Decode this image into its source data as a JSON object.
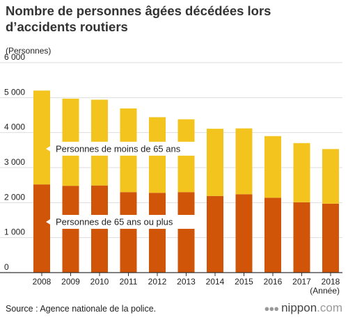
{
  "title": "Nombre de personnes âgées décédées lors d’accidents routiers",
  "unit_label": "(Personnes)",
  "source": "Source : Agence nationale de la police.",
  "brand": {
    "name": "nippon",
    "suffix": ".com",
    "icon": "nippon-dots-icon"
  },
  "colors": {
    "young": "#f2c41d",
    "old": "#d15508",
    "axis": "#333333",
    "grid": "#dddddd"
  },
  "chart_data": {
    "type": "bar",
    "stacked": true,
    "title": "Nombre de personnes âgées décédées lors d’accidents routiers",
    "xlabel": "(Année)",
    "ylabel": "(Personnes)",
    "categories": [
      "2008",
      "2009",
      "2010",
      "2011",
      "2012",
      "2013",
      "2014",
      "2015",
      "2016",
      "2017",
      "2018"
    ],
    "series": [
      {
        "name": "Personnes de 65 ans ou plus",
        "values": [
          2520,
          2480,
          2490,
          2300,
          2280,
          2300,
          2190,
          2240,
          2140,
          2010,
          1970
        ]
      },
      {
        "name": "Personnes de moins de 65 ans",
        "values": [
          2680,
          2490,
          2450,
          2390,
          2160,
          2080,
          1920,
          1880,
          1760,
          1690,
          1560
        ]
      }
    ],
    "ylim": [
      0,
      6000
    ],
    "yticks": [
      0,
      1000,
      2000,
      3000,
      4000,
      5000,
      6000
    ],
    "ytick_labels": [
      "0",
      "1 000",
      "2 000",
      "3 000",
      "4 000",
      "5 000",
      "6 000"
    ],
    "grid": true,
    "legend": "inline"
  }
}
